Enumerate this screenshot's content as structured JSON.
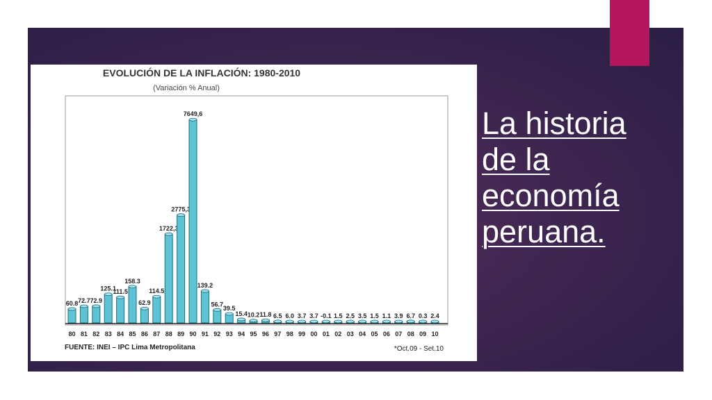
{
  "slide": {
    "title": "La historia de la economía peruana.",
    "colors": {
      "panel": "#3f2650",
      "accent": "#b5175f",
      "text": "#ffffff"
    }
  },
  "chart_data": {
    "type": "bar",
    "title": "EVOLUCIÓN DE LA INFLACIÓN: 1980-2010",
    "subtitle": "(Variación % Anual)",
    "source": "FUENTE: INEI – IPC Lima Metropolitana",
    "footnote": "*Oct.09 - Set.10",
    "bar_color": "#5fc3d6",
    "categories": [
      "80",
      "81",
      "82",
      "83",
      "84",
      "85",
      "86",
      "87",
      "88",
      "89",
      "90",
      "91",
      "92",
      "93",
      "94",
      "95",
      "96",
      "97",
      "98",
      "99",
      "00",
      "01",
      "02",
      "03",
      "04",
      "05",
      "06",
      "07",
      "08",
      "09",
      "10"
    ],
    "values": [
      60.8,
      72.7,
      72.9,
      125.1,
      111.5,
      158.3,
      62.9,
      114.5,
      1722.3,
      2775.3,
      7649.6,
      139.2,
      56.7,
      39.5,
      15.4,
      10.2,
      11.8,
      6.5,
      6.0,
      3.7,
      3.7,
      -0.1,
      1.5,
      2.5,
      3.5,
      1.5,
      1.1,
      3.9,
      6.7,
      0.3,
      2.4
    ],
    "labels": [
      "60.8",
      "72.7",
      "72.9",
      "125.1",
      "111.5",
      "158.3",
      "62.9",
      "114.5",
      "1722,3",
      "2775,3",
      "7649,6",
      "139.2",
      "56.7",
      "39.5",
      "15.4",
      "10.2",
      "11.8",
      "6.5",
      "6.0",
      "3.7",
      "3.7",
      "-0.1",
      "1.5",
      "2.5",
      "3.5",
      "1.5",
      "1.1",
      "3.9",
      "6.7",
      "0.3",
      "2.4"
    ]
  }
}
